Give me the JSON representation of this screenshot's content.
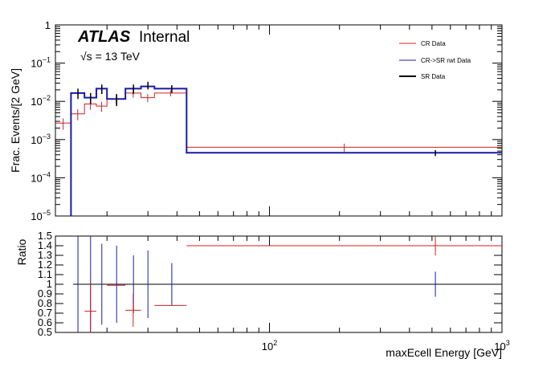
{
  "chart_data": [
    {
      "type": "line",
      "title": "",
      "ylabel": "Frac. Events/[2 GeV]",
      "xlabel": "",
      "xscale": "log",
      "yscale": "log",
      "xlim": [
        12,
        1000
      ],
      "ylim": [
        1e-05,
        1
      ],
      "y_ticks": [
        "10^{-5}",
        "10^{-4}",
        "10^{-3}",
        "10^{-2}",
        "10^{-1}",
        "1"
      ],
      "atlas_label": {
        "bold": "ATLAS",
        "rest": "Internal"
      },
      "energy_label": "√s = 13 TeV",
      "legend_position": "top-right",
      "series": [
        {
          "name": "CR Data",
          "color": "#cc2222",
          "bins": [
            {
              "x0": 12,
              "x1": 14,
              "y": 0.0027,
              "err": 0.0009
            },
            {
              "x0": 14,
              "x1": 16,
              "y": 0.0047,
              "err": 0.0015
            },
            {
              "x0": 16,
              "x1": 18,
              "y": 0.0085,
              "err": 0.0025
            },
            {
              "x0": 18,
              "x1": 20,
              "y": 0.0075,
              "err": 0.0022
            },
            {
              "x0": 20,
              "x1": 24,
              "y": 0.0115,
              "err": 0.003
            },
            {
              "x0": 24,
              "x1": 28,
              "y": 0.0165,
              "err": 0.004
            },
            {
              "x0": 28,
              "x1": 32,
              "y": 0.0125,
              "err": 0.003
            },
            {
              "x0": 32,
              "x1": 44,
              "y": 0.0165,
              "err": 0.003
            },
            {
              "x0": 44,
              "x1": 1000,
              "y": 0.00063,
              "err": 0.00015
            }
          ]
        },
        {
          "name": "CR->SR rwt Data",
          "color": "#1a1aaa",
          "bins": [
            {
              "x0": 14,
              "x1": 16,
              "y": 0.0165,
              "err": 0.004
            },
            {
              "x0": 16,
              "x1": 18,
              "y": 0.0125,
              "err": 0.004
            },
            {
              "x0": 18,
              "x1": 20,
              "y": 0.0215,
              "err": 0.005
            },
            {
              "x0": 20,
              "x1": 24,
              "y": 0.0115,
              "err": 0.003
            },
            {
              "x0": 24,
              "x1": 28,
              "y": 0.0215,
              "err": 0.005
            },
            {
              "x0": 28,
              "x1": 32,
              "y": 0.0245,
              "err": 0.005
            },
            {
              "x0": 32,
              "x1": 44,
              "y": 0.0215,
              "err": 0.004
            },
            {
              "x0": 44,
              "x1": 1000,
              "y": 0.00045,
              "err": 8e-05
            }
          ]
        },
        {
          "name": "SR Data",
          "color": "#000000",
          "points": [
            {
              "x": 15,
              "y": 0.0165,
              "err": 0.005
            },
            {
              "x": 17,
              "y": 0.0125,
              "err": 0.004
            },
            {
              "x": 19,
              "y": 0.0215,
              "err": 0.006
            },
            {
              "x": 22,
              "y": 0.0115,
              "err": 0.004
            },
            {
              "x": 26,
              "y": 0.0215,
              "err": 0.006
            },
            {
              "x": 30,
              "y": 0.0265,
              "err": 0.006
            },
            {
              "x": 38,
              "y": 0.0215,
              "err": 0.005
            },
            {
              "x": 517,
              "y": 0.00045,
              "err": 8e-05
            }
          ]
        }
      ]
    },
    {
      "type": "scatter",
      "title": "",
      "ylabel": "Ratio",
      "xlabel": "maxEcell Energy [GeV]",
      "xscale": "log",
      "xlim": [
        12,
        1000
      ],
      "ylim": [
        0.5,
        1.5
      ],
      "x_ticks": [
        {
          "value": 100,
          "base": "10",
          "exp": "2"
        },
        {
          "value": 1000,
          "base": "10",
          "exp": "3"
        }
      ],
      "y_ticks": [
        "0.5",
        "0.6",
        "0.7",
        "0.8",
        "0.9",
        "1",
        "1.1",
        "1.2",
        "1.3",
        "1.4",
        "1.5"
      ],
      "reference_line": 1,
      "series": [
        {
          "name": "CR Data",
          "color": "#cc2222",
          "points": [
            {
              "x0": 16,
              "x1": 18,
              "y": 0.72,
              "err": 0.3
            },
            {
              "x0": 20,
              "x1": 24,
              "y": 0.99,
              "err": 0
            },
            {
              "x0": 24,
              "x1": 28,
              "y": 0.73,
              "err": 0.17
            },
            {
              "x0": 32,
              "x1": 44,
              "y": 0.78,
              "err": 0
            },
            {
              "x0": 44,
              "x1": 1000,
              "y": 1.4,
              "err": 0.1,
              "xc": 517
            }
          ]
        },
        {
          "name": "CR->SR rwt Data",
          "color": "#1a1aaa",
          "points": [
            {
              "x0": 15,
              "x1": 15,
              "y": 1.0,
              "err": 0.5
            },
            {
              "x0": 17,
              "x1": 17,
              "y": 1.0,
              "err": 0.5
            },
            {
              "x0": 19,
              "x1": 19,
              "y": 1.0,
              "err": 0.42
            },
            {
              "x0": 22,
              "x1": 22,
              "y": 1.0,
              "err": 0.4
            },
            {
              "x0": 26,
              "x1": 26,
              "y": 1.0,
              "err": 0.3
            },
            {
              "x0": 30,
              "x1": 30,
              "y": 1.0,
              "err": 0.35
            },
            {
              "x0": 38,
              "x1": 38,
              "y": 1.0,
              "err": 0.22
            },
            {
              "x0": 517,
              "x1": 517,
              "y": 1.0,
              "err": 0.13
            }
          ]
        }
      ]
    }
  ]
}
